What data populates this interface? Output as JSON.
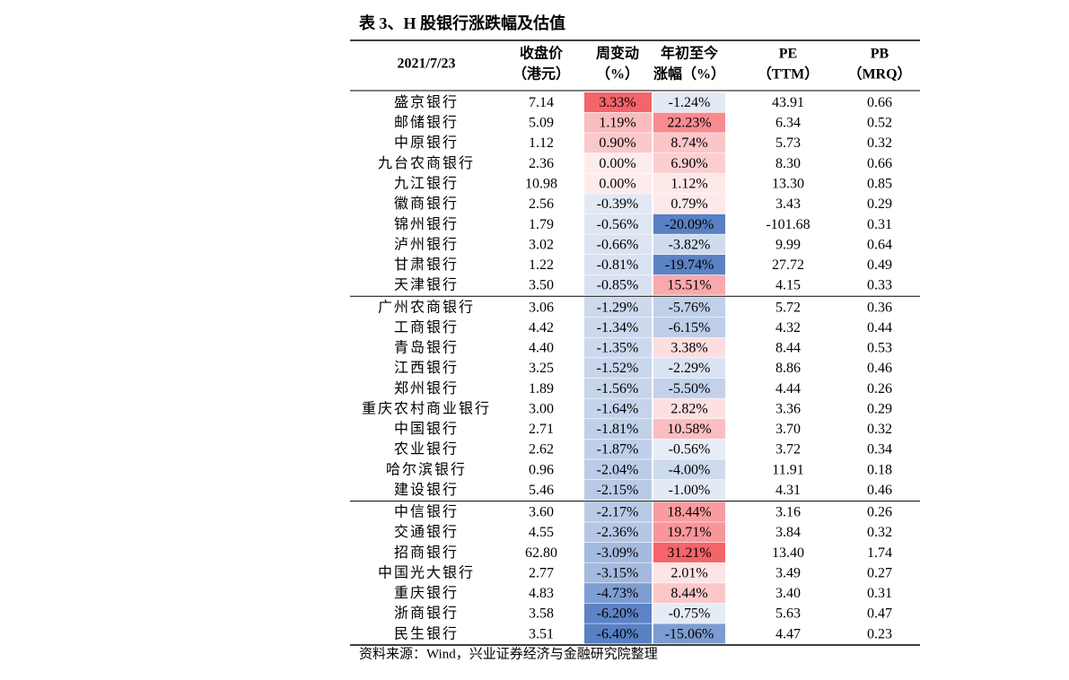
{
  "title": "表 3、H 股银行涨跌幅及估值",
  "table": {
    "header": [
      [
        "2021/7/23"
      ],
      [
        "收盘价",
        "（港元）"
      ],
      [
        "周变动",
        "（%）"
      ],
      [
        "年初至今",
        "涨幅（%）"
      ],
      [
        "PE",
        "（TTM）"
      ],
      [
        "PB",
        "（MRQ）"
      ]
    ],
    "groups": [
      [
        [
          "盛京银行",
          "7.14",
          "3.33%",
          "-1.24%",
          "43.91",
          "0.66"
        ],
        [
          "邮储银行",
          "5.09",
          "1.19%",
          "22.23%",
          "6.34",
          "0.52"
        ],
        [
          "中原银行",
          "1.12",
          "0.90%",
          "8.74%",
          "5.73",
          "0.32"
        ],
        [
          "九台农商银行",
          "2.36",
          "0.00%",
          "6.90%",
          "8.30",
          "0.66"
        ],
        [
          "九江银行",
          "10.98",
          "0.00%",
          "1.12%",
          "13.30",
          "0.85"
        ],
        [
          "徽商银行",
          "2.56",
          "-0.39%",
          "0.79%",
          "3.43",
          "0.29"
        ],
        [
          "锦州银行",
          "1.79",
          "-0.56%",
          "-20.09%",
          "-101.68",
          "0.31"
        ],
        [
          "泸州银行",
          "3.02",
          "-0.66%",
          "-3.82%",
          "9.99",
          "0.64"
        ],
        [
          "甘肃银行",
          "1.22",
          "-0.81%",
          "-19.74%",
          "27.72",
          "0.49"
        ],
        [
          "天津银行",
          "3.50",
          "-0.85%",
          "15.51%",
          "4.15",
          "0.33"
        ]
      ],
      [
        [
          "广州农商银行",
          "3.06",
          "-1.29%",
          "-5.76%",
          "5.72",
          "0.36"
        ],
        [
          "工商银行",
          "4.42",
          "-1.34%",
          "-6.15%",
          "4.32",
          "0.44"
        ],
        [
          "青岛银行",
          "4.40",
          "-1.35%",
          "3.38%",
          "8.44",
          "0.53"
        ],
        [
          "江西银行",
          "3.25",
          "-1.52%",
          "-2.29%",
          "8.86",
          "0.46"
        ],
        [
          "郑州银行",
          "1.89",
          "-1.56%",
          "-5.50%",
          "4.44",
          "0.26"
        ],
        [
          "重庆农村商业银行",
          "3.00",
          "-1.64%",
          "2.82%",
          "3.36",
          "0.29"
        ],
        [
          "中国银行",
          "2.71",
          "-1.81%",
          "10.58%",
          "3.70",
          "0.32"
        ],
        [
          "农业银行",
          "2.62",
          "-1.87%",
          "-0.56%",
          "3.72",
          "0.34"
        ],
        [
          "哈尔滨银行",
          "0.96",
          "-2.04%",
          "-4.00%",
          "11.91",
          "0.18"
        ],
        [
          "建设银行",
          "5.46",
          "-2.15%",
          "-1.00%",
          "4.31",
          "0.46"
        ]
      ],
      [
        [
          "中信银行",
          "3.60",
          "-2.17%",
          "18.44%",
          "3.16",
          "0.26"
        ],
        [
          "交通银行",
          "4.55",
          "-2.36%",
          "19.71%",
          "3.84",
          "0.32"
        ],
        [
          "招商银行",
          "62.80",
          "-3.09%",
          "31.21%",
          "13.40",
          "1.74"
        ],
        [
          "中国光大银行",
          "2.77",
          "-3.15%",
          "2.01%",
          "3.49",
          "0.27"
        ],
        [
          "重庆银行",
          "4.83",
          "-4.73%",
          "8.44%",
          "3.40",
          "0.31"
        ],
        [
          "浙商银行",
          "3.58",
          "-6.20%",
          "-0.75%",
          "5.63",
          "0.47"
        ],
        [
          "民生银行",
          "3.51",
          "-6.40%",
          "-15.06%",
          "4.47",
          "0.23"
        ]
      ]
    ]
  },
  "source": "资料来源：Wind，兴业证券经济与金融研究院整理"
}
